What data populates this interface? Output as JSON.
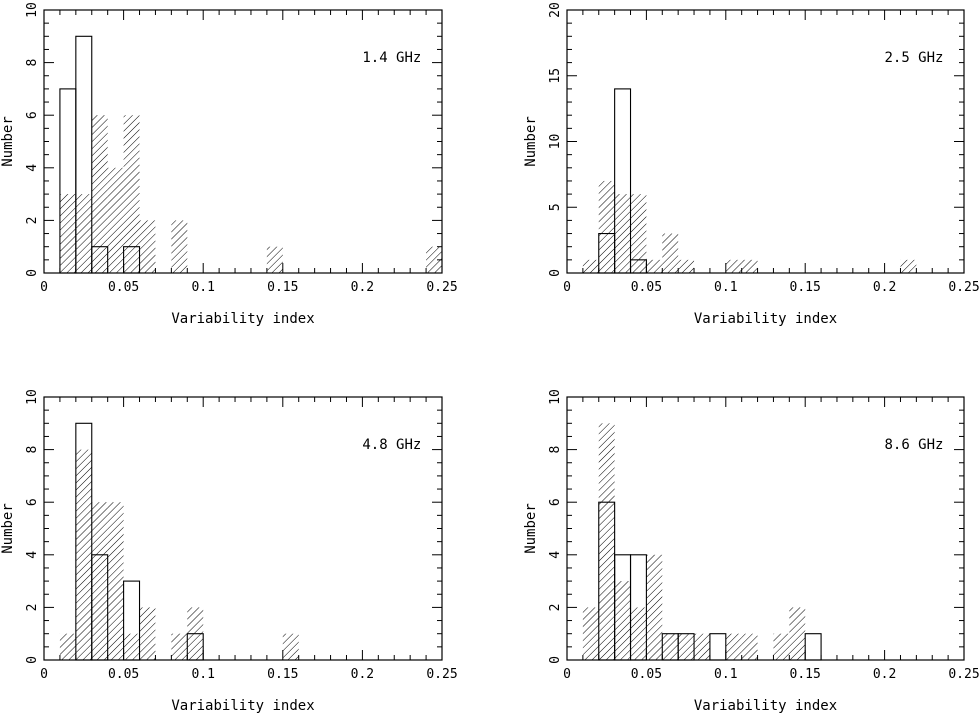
{
  "chart_data": [
    {
      "type": "bar",
      "title": "",
      "annotation": "1.4 GHz",
      "xlabel": "Variability index",
      "ylabel": "Number",
      "xlim": [
        0,
        0.25
      ],
      "ylim": [
        0,
        10
      ],
      "xticks": [
        "0",
        "0.05",
        "0.1",
        "0.15",
        "0.2",
        "0.25"
      ],
      "yticks": [
        "0",
        "2",
        "4",
        "6",
        "8",
        "10"
      ],
      "bin_width": 0.01,
      "series": [
        {
          "style": "hatched",
          "bins": [
            {
              "x": 0.01,
              "value": 3
            },
            {
              "x": 0.02,
              "value": 3
            },
            {
              "x": 0.03,
              "value": 6
            },
            {
              "x": 0.04,
              "value": 4
            },
            {
              "x": 0.05,
              "value": 6
            },
            {
              "x": 0.06,
              "value": 2
            },
            {
              "x": 0.08,
              "value": 2
            },
            {
              "x": 0.14,
              "value": 1
            },
            {
              "x": 0.24,
              "value": 1
            }
          ]
        },
        {
          "style": "open",
          "bins": [
            {
              "x": 0.01,
              "value": 7
            },
            {
              "x": 0.02,
              "value": 9
            },
            {
              "x": 0.03,
              "value": 1
            },
            {
              "x": 0.05,
              "value": 1
            }
          ]
        }
      ]
    },
    {
      "type": "bar",
      "title": "",
      "annotation": "2.5 GHz",
      "xlabel": "Variability index",
      "ylabel": "Number",
      "xlim": [
        0,
        0.25
      ],
      "ylim": [
        0,
        20
      ],
      "xticks": [
        "0",
        "0.05",
        "0.1",
        "0.15",
        "0.2",
        "0.25"
      ],
      "yticks": [
        "0",
        "5",
        "10",
        "15",
        "20"
      ],
      "bin_width": 0.01,
      "series": [
        {
          "style": "hatched",
          "bins": [
            {
              "x": 0.01,
              "value": 1
            },
            {
              "x": 0.02,
              "value": 7
            },
            {
              "x": 0.03,
              "value": 6
            },
            {
              "x": 0.04,
              "value": 6
            },
            {
              "x": 0.05,
              "value": 1
            },
            {
              "x": 0.06,
              "value": 3
            },
            {
              "x": 0.07,
              "value": 1
            },
            {
              "x": 0.1,
              "value": 1
            },
            {
              "x": 0.11,
              "value": 1
            },
            {
              "x": 0.21,
              "value": 1
            }
          ]
        },
        {
          "style": "open",
          "bins": [
            {
              "x": 0.02,
              "value": 3
            },
            {
              "x": 0.03,
              "value": 14
            },
            {
              "x": 0.04,
              "value": 1
            }
          ]
        }
      ]
    },
    {
      "type": "bar",
      "title": "",
      "annotation": "4.8 GHz",
      "xlabel": "Variability index",
      "ylabel": "Number",
      "xlim": [
        0,
        0.25
      ],
      "ylim": [
        0,
        10
      ],
      "xticks": [
        "0",
        "0.05",
        "0.1",
        "0.15",
        "0.2",
        "0.25"
      ],
      "yticks": [
        "0",
        "2",
        "4",
        "6",
        "8",
        "10"
      ],
      "bin_width": 0.01,
      "series": [
        {
          "style": "hatched",
          "bins": [
            {
              "x": 0.01,
              "value": 1
            },
            {
              "x": 0.02,
              "value": 8
            },
            {
              "x": 0.03,
              "value": 6
            },
            {
              "x": 0.04,
              "value": 6
            },
            {
              "x": 0.05,
              "value": 1
            },
            {
              "x": 0.06,
              "value": 2
            },
            {
              "x": 0.08,
              "value": 1
            },
            {
              "x": 0.09,
              "value": 2
            },
            {
              "x": 0.15,
              "value": 1
            }
          ]
        },
        {
          "style": "open",
          "bins": [
            {
              "x": 0.02,
              "value": 9
            },
            {
              "x": 0.03,
              "value": 4
            },
            {
              "x": 0.05,
              "value": 3
            },
            {
              "x": 0.09,
              "value": 1
            }
          ]
        }
      ]
    },
    {
      "type": "bar",
      "title": "",
      "annotation": "8.6 GHz",
      "xlabel": "Variability index",
      "ylabel": "Number",
      "xlim": [
        0,
        0.25
      ],
      "ylim": [
        0,
        10
      ],
      "xticks": [
        "0",
        "0.05",
        "0.1",
        "0.15",
        "0.2",
        "0.25"
      ],
      "yticks": [
        "0",
        "2",
        "4",
        "6",
        "8",
        "10"
      ],
      "bin_width": 0.01,
      "series": [
        {
          "style": "hatched",
          "bins": [
            {
              "x": 0.01,
              "value": 2
            },
            {
              "x": 0.02,
              "value": 9
            },
            {
              "x": 0.03,
              "value": 3
            },
            {
              "x": 0.04,
              "value": 2
            },
            {
              "x": 0.05,
              "value": 4
            },
            {
              "x": 0.06,
              "value": 1
            },
            {
              "x": 0.07,
              "value": 1
            },
            {
              "x": 0.08,
              "value": 1
            },
            {
              "x": 0.1,
              "value": 1
            },
            {
              "x": 0.11,
              "value": 1
            },
            {
              "x": 0.13,
              "value": 1
            },
            {
              "x": 0.14,
              "value": 2
            }
          ]
        },
        {
          "style": "open",
          "bins": [
            {
              "x": 0.02,
              "value": 6
            },
            {
              "x": 0.03,
              "value": 4
            },
            {
              "x": 0.04,
              "value": 4
            },
            {
              "x": 0.06,
              "value": 1
            },
            {
              "x": 0.07,
              "value": 1
            },
            {
              "x": 0.09,
              "value": 1
            },
            {
              "x": 0.15,
              "value": 1
            }
          ]
        }
      ]
    }
  ]
}
